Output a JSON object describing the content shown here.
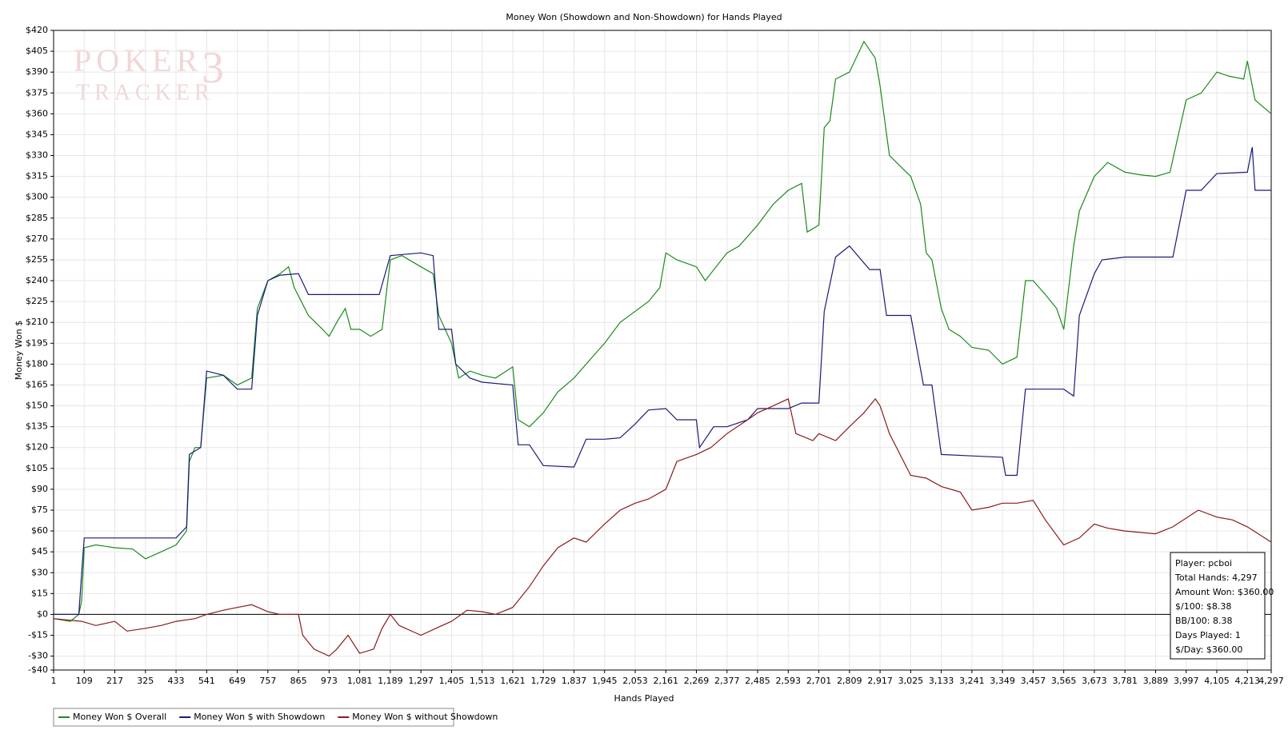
{
  "chart_data": {
    "type": "line",
    "title": "Money Won (Showdown and Non-Showdown) for Hands Played",
    "x_label": "Hands Played",
    "y_label": "Money Won $",
    "watermark": [
      "POKER",
      "TRACKER",
      "3"
    ],
    "info_box": [
      "Player: pcboi",
      "Total Hands: 4,297",
      "Amount Won: $360.00",
      "$/100: $8.38",
      "BB/100: 8.38",
      "Days Played: 1",
      "$/Day: $360.00"
    ],
    "grid": true,
    "legend": "bottom-left",
    "xlim": [
      1,
      4297
    ],
    "ylim": [
      -40,
      420
    ],
    "xticks": [
      1,
      109,
      217,
      325,
      433,
      541,
      649,
      757,
      865,
      973,
      {
        "value": 1081,
        "label": "1,081"
      },
      {
        "value": 1189,
        "label": "1,189"
      },
      {
        "value": 1297,
        "label": "1,297"
      },
      {
        "value": 1405,
        "label": "1,405"
      },
      {
        "value": 1513,
        "label": "1,513"
      },
      {
        "value": 1621,
        "label": "1,621"
      },
      {
        "value": 1729,
        "label": "1,729"
      },
      {
        "value": 1837,
        "label": "1,837"
      },
      {
        "value": 1945,
        "label": "1,945"
      },
      {
        "value": 2053,
        "label": "2,053"
      },
      {
        "value": 2161,
        "label": "2,161"
      },
      {
        "value": 2269,
        "label": "2,269"
      },
      {
        "value": 2377,
        "label": "2,377"
      },
      {
        "value": 2485,
        "label": "2,485"
      },
      {
        "value": 2593,
        "label": "2,593"
      },
      {
        "value": 2701,
        "label": "2,701"
      },
      {
        "value": 2809,
        "label": "2,809"
      },
      {
        "value": 2917,
        "label": "2,917"
      },
      {
        "value": 3025,
        "label": "3,025"
      },
      {
        "value": 3133,
        "label": "3,133"
      },
      {
        "value": 3241,
        "label": "3,241"
      },
      {
        "value": 3349,
        "label": "3,349"
      },
      {
        "value": 3457,
        "label": "3,457"
      },
      {
        "value": 3565,
        "label": "3,565"
      },
      {
        "value": 3673,
        "label": "3,673"
      },
      {
        "value": 3781,
        "label": "3,781"
      },
      {
        "value": 3889,
        "label": "3,889"
      },
      {
        "value": 3997,
        "label": "3,997"
      },
      {
        "value": 4105,
        "label": "4,105"
      },
      {
        "value": 4213,
        "label": "4,213"
      },
      {
        "value": 4297,
        "label": "4,297"
      }
    ],
    "yticks": [
      {
        "value": 420,
        "label": "$420"
      },
      {
        "value": 405,
        "label": "$405"
      },
      {
        "value": 390,
        "label": "$390"
      },
      {
        "value": 375,
        "label": "$375"
      },
      {
        "value": 360,
        "label": "$360"
      },
      {
        "value": 345,
        "label": "$345"
      },
      {
        "value": 330,
        "label": "$330"
      },
      {
        "value": 315,
        "label": "$315"
      },
      {
        "value": 300,
        "label": "$300"
      },
      {
        "value": 285,
        "label": "$285"
      },
      {
        "value": 270,
        "label": "$270"
      },
      {
        "value": 255,
        "label": "$255"
      },
      {
        "value": 240,
        "label": "$240"
      },
      {
        "value": 225,
        "label": "$225"
      },
      {
        "value": 210,
        "label": "$210"
      },
      {
        "value": 195,
        "label": "$195"
      },
      {
        "value": 180,
        "label": "$180"
      },
      {
        "value": 165,
        "label": "$165"
      },
      {
        "value": 150,
        "label": "$150"
      },
      {
        "value": 135,
        "label": "$135"
      },
      {
        "value": 120,
        "label": "$120"
      },
      {
        "value": 105,
        "label": "$105"
      },
      {
        "value": 90,
        "label": "$90"
      },
      {
        "value": 75,
        "label": "$75"
      },
      {
        "value": 60,
        "label": "$60"
      },
      {
        "value": 45,
        "label": "$45"
      },
      {
        "value": 30,
        "label": "$30"
      },
      {
        "value": 15,
        "label": "$15"
      },
      {
        "value": 0,
        "label": "$0"
      },
      {
        "value": -15,
        "label": "-$15"
      },
      {
        "value": -30,
        "label": "-$30"
      },
      {
        "value": -40,
        "label": "-$40"
      }
    ],
    "series": [
      {
        "name": "Money Won $ Overall",
        "color": "#1a8a1a",
        "x": [
          1,
          60,
          90,
          100,
          109,
          150,
          217,
          280,
          325,
          380,
          433,
          470,
          480,
          500,
          520,
          541,
          600,
          649,
          700,
          720,
          757,
          800,
          830,
          850,
          900,
          950,
          973,
          1000,
          1030,
          1050,
          1081,
          1120,
          1160,
          1189,
          1230,
          1297,
          1340,
          1360,
          1405,
          1430,
          1470,
          1513,
          1560,
          1621,
          1640,
          1680,
          1729,
          1780,
          1837,
          1880,
          1945,
          2000,
          2053,
          2100,
          2140,
          2161,
          2200,
          2269,
          2300,
          2377,
          2420,
          2485,
          2540,
          2593,
          2640,
          2660,
          2701,
          2720,
          2740,
          2760,
          2809,
          2860,
          2900,
          2917,
          2950,
          3000,
          3025,
          3060,
          3080,
          3100,
          3133,
          3160,
          3200,
          3241,
          3300,
          3349,
          3400,
          3430,
          3457,
          3500,
          3540,
          3565,
          3600,
          3620,
          3673,
          3720,
          3781,
          3840,
          3889,
          3940,
          3997,
          4050,
          4105,
          4150,
          4200,
          4213,
          4240,
          4297
        ],
        "values": [
          -3,
          -5,
          0,
          10,
          48,
          50,
          48,
          47,
          40,
          45,
          50,
          60,
          110,
          120,
          120,
          170,
          172,
          165,
          170,
          220,
          240,
          245,
          250,
          235,
          215,
          205,
          200,
          210,
          220,
          205,
          205,
          200,
          205,
          255,
          258,
          250,
          245,
          215,
          195,
          170,
          175,
          172,
          170,
          178,
          140,
          135,
          145,
          160,
          170,
          180,
          195,
          210,
          218,
          225,
          235,
          260,
          255,
          250,
          240,
          260,
          265,
          280,
          295,
          305,
          310,
          275,
          280,
          350,
          355,
          385,
          390,
          412,
          400,
          380,
          330,
          320,
          315,
          295,
          260,
          255,
          220,
          205,
          200,
          192,
          190,
          180,
          185,
          240,
          240,
          230,
          220,
          205,
          265,
          290,
          315,
          325,
          318,
          316,
          315,
          318,
          370,
          375,
          390,
          387,
          385,
          398,
          370,
          360
        ]
      },
      {
        "name": "Money Won $ with Showdown",
        "color": "#1a1a7a",
        "x": [
          1,
          90,
          100,
          109,
          217,
          325,
          433,
          470,
          480,
          520,
          541,
          600,
          649,
          700,
          720,
          757,
          800,
          865,
          900,
          1000,
          1081,
          1150,
          1189,
          1297,
          1340,
          1360,
          1405,
          1420,
          1470,
          1513,
          1621,
          1640,
          1680,
          1729,
          1837,
          1880,
          1945,
          2000,
          2053,
          2100,
          2161,
          2200,
          2269,
          2280,
          2330,
          2377,
          2450,
          2485,
          2593,
          2640,
          2701,
          2720,
          2760,
          2809,
          2880,
          2917,
          2940,
          3025,
          3070,
          3100,
          3133,
          3241,
          3349,
          3360,
          3400,
          3430,
          3565,
          3600,
          3620,
          3673,
          3700,
          3781,
          3889,
          3950,
          3997,
          4050,
          4105,
          4213,
          4230,
          4240,
          4297
        ],
        "values": [
          0,
          0,
          30,
          55,
          55,
          55,
          55,
          63,
          115,
          120,
          175,
          172,
          162,
          162,
          215,
          240,
          244,
          245,
          230,
          230,
          230,
          230,
          258,
          260,
          258,
          205,
          205,
          180,
          170,
          167,
          165,
          122,
          122,
          107,
          106,
          126,
          126,
          127,
          137,
          147,
          148,
          140,
          140,
          120,
          135,
          135,
          140,
          148,
          148,
          152,
          152,
          218,
          257,
          265,
          248,
          248,
          215,
          215,
          165,
          165,
          115,
          114,
          113,
          100,
          100,
          162,
          162,
          157,
          215,
          245,
          255,
          257,
          257,
          257,
          305,
          305,
          317,
          318,
          336,
          305,
          305
        ]
      },
      {
        "name": "Money Won $ without Showdown",
        "color": "#8b1a1a",
        "x": [
          1,
          100,
          150,
          217,
          260,
          325,
          380,
          433,
          500,
          541,
          600,
          649,
          700,
          757,
          800,
          865,
          880,
          920,
          973,
          1000,
          1040,
          1081,
          1130,
          1160,
          1189,
          1220,
          1297,
          1350,
          1405,
          1460,
          1513,
          1560,
          1621,
          1680,
          1729,
          1780,
          1837,
          1880,
          1945,
          2000,
          2053,
          2100,
          2161,
          2200,
          2269,
          2320,
          2377,
          2450,
          2485,
          2540,
          2593,
          2620,
          2680,
          2701,
          2760,
          2809,
          2860,
          2900,
          2917,
          2950,
          3000,
          3025,
          3080,
          3133,
          3200,
          3241,
          3300,
          3349,
          3400,
          3457,
          3500,
          3565,
          3620,
          3673,
          3720,
          3781,
          3889,
          3950,
          4040,
          4105,
          4160,
          4213,
          4297
        ],
        "values": [
          -3,
          -5,
          -8,
          -5,
          -12,
          -10,
          -8,
          -5,
          -3,
          0,
          3,
          5,
          7,
          2,
          0,
          0,
          -15,
          -25,
          -30,
          -25,
          -15,
          -28,
          -25,
          -10,
          0,
          -8,
          -15,
          -10,
          -5,
          3,
          2,
          0,
          5,
          20,
          35,
          48,
          55,
          52,
          65,
          75,
          80,
          83,
          90,
          110,
          115,
          120,
          130,
          140,
          145,
          150,
          155,
          130,
          125,
          130,
          125,
          135,
          145,
          155,
          150,
          130,
          110,
          100,
          98,
          92,
          88,
          75,
          77,
          80,
          80,
          82,
          68,
          50,
          55,
          65,
          62,
          60,
          58,
          63,
          75,
          70,
          68,
          63,
          52
        ]
      }
    ]
  }
}
